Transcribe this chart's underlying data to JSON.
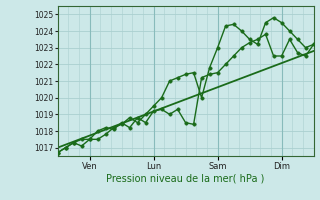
{
  "title": "",
  "xlabel": "Pression niveau de la mer( hPa )",
  "ylabel": "",
  "bg_color": "#cce8e8",
  "grid_color": "#aad0d0",
  "line_color": "#1a6b1a",
  "ylim": [
    1016.5,
    1025.5
  ],
  "yticks": [
    1017,
    1018,
    1019,
    1020,
    1021,
    1022,
    1023,
    1024,
    1025
  ],
  "xlim": [
    0,
    96
  ],
  "xtick_positions": [
    12,
    36,
    60,
    84
  ],
  "xtick_labels": [
    "Ven",
    "Lun",
    "Sam",
    "Dim"
  ],
  "vline_positions": [
    12,
    36,
    60,
    84
  ],
  "line1_x": [
    0,
    3,
    6,
    9,
    12,
    15,
    18,
    21,
    24,
    27,
    30,
    33,
    36,
    39,
    42,
    45,
    48,
    51,
    54,
    57,
    60,
    63,
    66,
    69,
    72,
    75,
    78,
    81,
    84,
    87,
    90,
    93,
    96
  ],
  "line1_y": [
    1016.7,
    1017.0,
    1017.3,
    1017.1,
    1017.5,
    1017.5,
    1017.8,
    1018.2,
    1018.4,
    1018.8,
    1018.5,
    1019.0,
    1019.5,
    1020.0,
    1021.0,
    1021.2,
    1021.4,
    1021.5,
    1020.0,
    1021.8,
    1023.0,
    1024.3,
    1024.4,
    1024.0,
    1023.5,
    1023.2,
    1024.5,
    1024.8,
    1024.5,
    1024.0,
    1023.5,
    1023.0,
    1023.2
  ],
  "line2_x": [
    0,
    3,
    6,
    9,
    12,
    15,
    18,
    21,
    24,
    27,
    30,
    33,
    36,
    39,
    42,
    45,
    48,
    51,
    54,
    57,
    60,
    63,
    66,
    69,
    72,
    75,
    78,
    81,
    84,
    87,
    90,
    93,
    96
  ],
  "line2_y": [
    1016.7,
    1017.0,
    1017.3,
    1017.5,
    1017.5,
    1018.0,
    1018.2,
    1018.1,
    1018.5,
    1018.2,
    1018.8,
    1018.5,
    1019.2,
    1019.3,
    1019.0,
    1019.3,
    1018.5,
    1018.4,
    1021.2,
    1021.4,
    1021.5,
    1022.0,
    1022.5,
    1023.0,
    1023.3,
    1023.5,
    1023.8,
    1022.5,
    1022.5,
    1023.5,
    1022.7,
    1022.5,
    1023.2
  ],
  "line3_x": [
    0,
    96
  ],
  "line3_y": [
    1017.0,
    1022.8
  ],
  "marker_size": 2.5,
  "line_width": 1.0
}
